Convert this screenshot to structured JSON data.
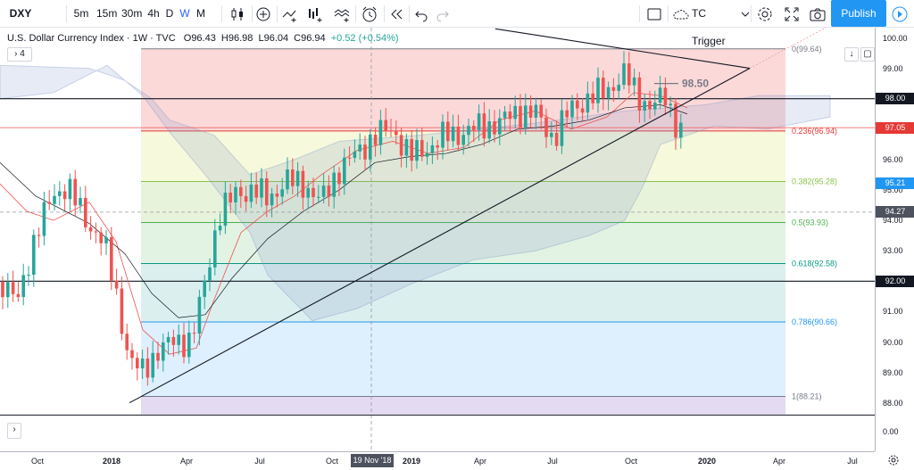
{
  "toolbar": {
    "symbol": "DXY",
    "intervals": [
      "5m",
      "15m",
      "30m",
      "4h",
      "D",
      "W",
      "M"
    ],
    "active_interval": "W",
    "alert_label": "TC Trigger",
    "publish_label": "Publish",
    "icons": [
      "candles-icon",
      "add-compare-icon",
      "indicators-icon",
      "bar-chart-icon",
      "templates-icon",
      "alert-icon",
      "replay-icon",
      "undo-icon",
      "redo-icon",
      "fullscreen-rect-icon",
      "cloud-icon",
      "settings-icon",
      "expand-icon",
      "camera-icon",
      "play-icon"
    ]
  },
  "legend": {
    "title": "U.S. Dollar Currency Index · 1W · TVC",
    "o_label": "O",
    "o": "96.43",
    "h_label": "H",
    "h": "96.98",
    "l_label": "L",
    "l": "96.04",
    "c_label": "C",
    "c": "96.94",
    "change": "+0.52 (+0.54%)",
    "indicators_count": "4"
  },
  "annotation": {
    "label": "98.50"
  },
  "fib_levels": [
    {
      "ratio": "0",
      "label": "0(99.64)",
      "price": 99.64,
      "color": "#787b86"
    },
    {
      "ratio": "0.236",
      "label": "0.236(96.94)",
      "price": 96.94,
      "color": "#e53935"
    },
    {
      "ratio": "0.382",
      "label": "0.382(95.28)",
      "price": 95.28,
      "color": "#8bc34a"
    },
    {
      "ratio": "0.5",
      "label": "0.5(93.93)",
      "price": 93.93,
      "color": "#4caf50"
    },
    {
      "ratio": "0.618",
      "label": "0.618(92.58)",
      "price": 92.58,
      "color": "#089981"
    },
    {
      "ratio": "0.786",
      "label": "0.786(90.66)",
      "price": 90.66,
      "color": "#2196f3"
    },
    {
      "ratio": "1",
      "label": "1(88.21)",
      "price": 88.21,
      "color": "#787b86"
    }
  ],
  "price_scale": {
    "ticks": [
      "100.00",
      "99.00",
      "98.00",
      "97.00",
      "96.00",
      "95.00",
      "94.00",
      "93.00",
      "92.00",
      "91.00",
      "90.00",
      "89.00",
      "88.00",
      "0.00"
    ],
    "labels": [
      {
        "text": "98.00",
        "price": 98.0,
        "color": "#131722"
      },
      {
        "text": "97.05",
        "price": 97.05,
        "color": "#e53935"
      },
      {
        "text": "95.21",
        "price": 95.21,
        "color": "#2196f3"
      },
      {
        "text": "94.27",
        "price": 94.27,
        "color": "#4c525e"
      },
      {
        "text": "92.00",
        "price": 92.0,
        "color": "#131722"
      }
    ]
  },
  "time_scale": {
    "ticks": [
      "Oct",
      "2018",
      "Apr",
      "Jul",
      "Oct",
      "2019",
      "Apr",
      "Jul",
      "Oct",
      "2020",
      "Apr",
      "Jul"
    ],
    "crosshair_label": "19 Nov '18"
  },
  "horizontal_lines": [
    98.0,
    92.0
  ],
  "chart_data": {
    "type": "candlestick",
    "title": "U.S. Dollar Currency Index",
    "ylim": [
      87.5,
      100.4
    ],
    "ohlc_recent": {
      "open": 96.43,
      "high": 96.98,
      "low": 96.04,
      "close": 96.94
    }
  },
  "colors": {
    "up": "#26a69a",
    "down": "#ef5350",
    "accent": "#2962ff",
    "publish": "#2196f3"
  }
}
